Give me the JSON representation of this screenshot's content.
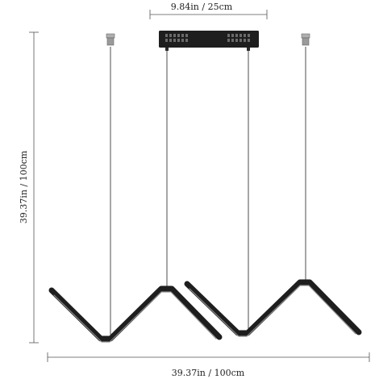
{
  "dimensions": {
    "canopy_width": "9.84in / 25cm",
    "overall_height": "39.37in / 100cm",
    "overall_width": "39.37in / 100cm"
  },
  "colors": {
    "fixture": "#1e1e1e",
    "diffuser": "#8a8a8a",
    "cable": "#3a3a3a",
    "dimension_line": "#555555",
    "anchor": "#9a9a9a",
    "text": "#222222"
  }
}
